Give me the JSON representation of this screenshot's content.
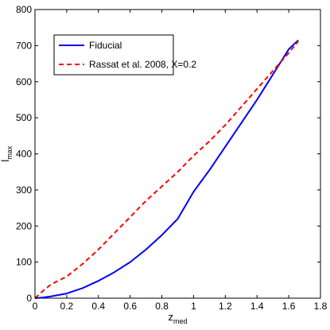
{
  "chart_data": {
    "type": "line",
    "xlabel": "z",
    "xlabel_sub": "med",
    "ylabel": "l",
    "ylabel_sub": "max",
    "xlim": [
      0,
      1.8
    ],
    "ylim": [
      0,
      800
    ],
    "xticks": [
      "0",
      "0.2",
      "0.4",
      "0.6",
      "0.8",
      "1",
      "1.2",
      "1.4",
      "1.6",
      "1.8"
    ],
    "yticks": [
      "0",
      "100",
      "200",
      "300",
      "400",
      "500",
      "600",
      "700",
      "800"
    ],
    "grid": false,
    "legend_position": "top-left",
    "series": [
      {
        "name": "Fiducial",
        "color": "#0000ff",
        "style": "solid",
        "x": [
          0,
          0.05,
          0.1,
          0.2,
          0.3,
          0.4,
          0.5,
          0.6,
          0.7,
          0.8,
          0.9,
          1.0,
          1.1,
          1.2,
          1.3,
          1.4,
          1.5,
          1.6,
          1.66
        ],
        "y": [
          0,
          2,
          5,
          13,
          28,
          48,
          72,
          100,
          135,
          175,
          220,
          295,
          355,
          420,
          485,
          550,
          620,
          690,
          715
        ]
      },
      {
        "name": "Rassat et al. 2008, X=0.2",
        "color": "#ff0000",
        "style": "dashed",
        "x": [
          0,
          0.05,
          0.1,
          0.2,
          0.3,
          0.4,
          0.5,
          0.6,
          0.7,
          0.8,
          0.9,
          1.0,
          1.1,
          1.2,
          1.3,
          1.4,
          1.5,
          1.6,
          1.66
        ],
        "y": [
          0,
          20,
          38,
          60,
          95,
          135,
          180,
          225,
          270,
          310,
          350,
          395,
          435,
          480,
          530,
          580,
          630,
          680,
          712
        ]
      }
    ]
  }
}
